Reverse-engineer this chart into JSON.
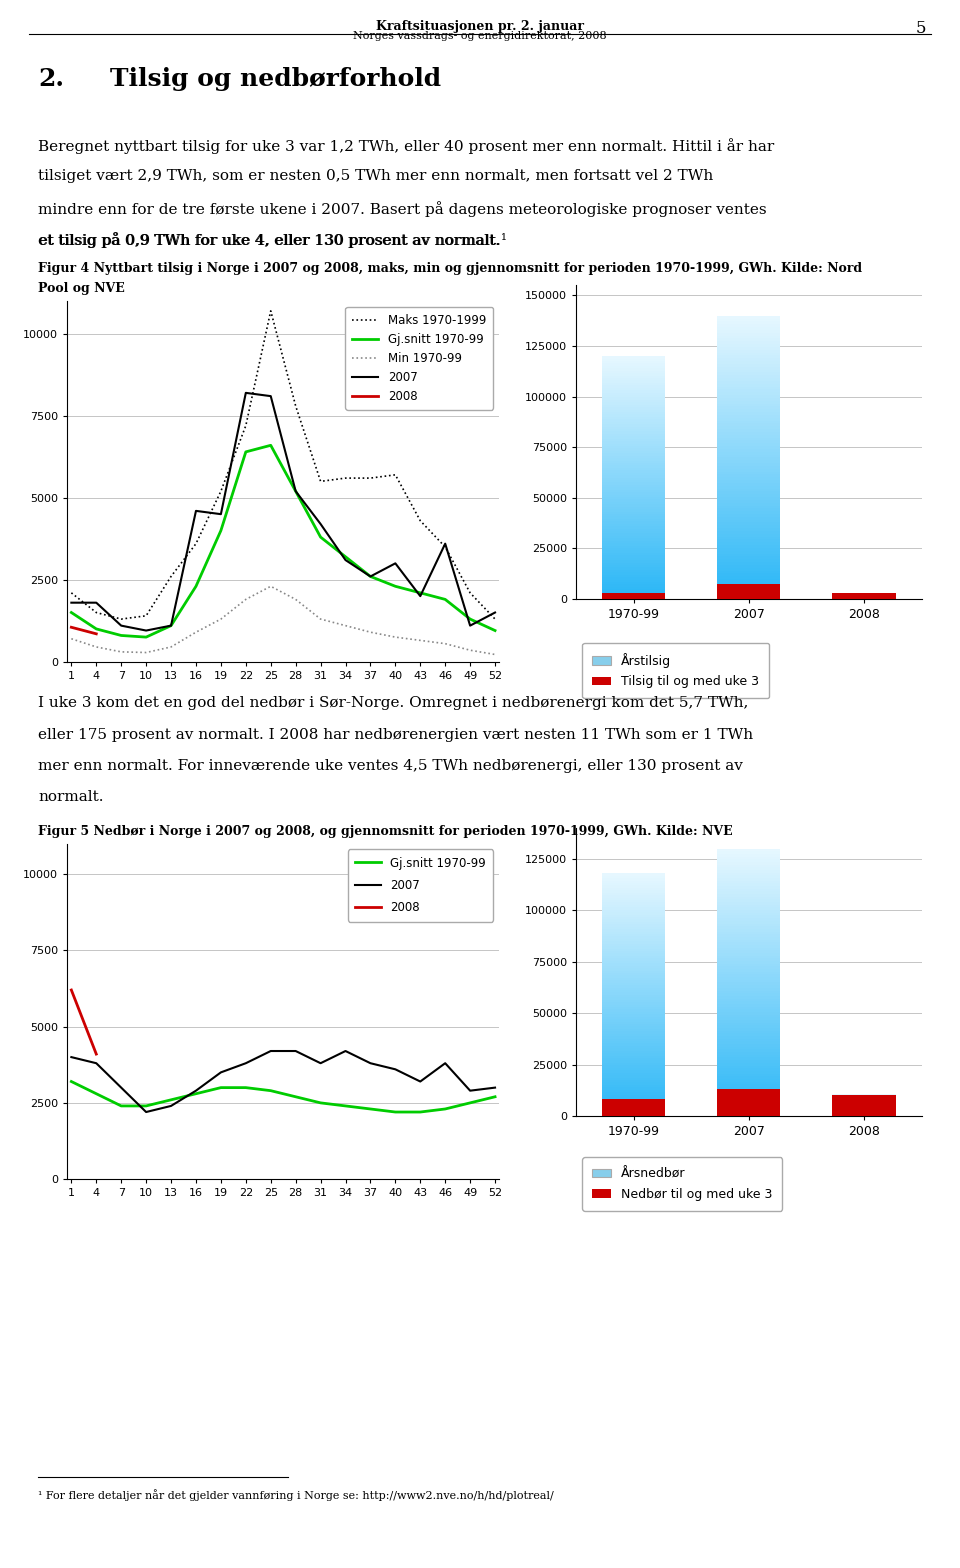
{
  "page_header_line1": "Kraftsituasjonen pr. 2. januar",
  "page_header_line2": "Norges vassdrags- og energidirektorat, 2008",
  "page_number": "5",
  "section_number": "2.",
  "section_title": "Tilsig og nedbørforhold",
  "body_text1_line1": "Beregnet nyttbart tilsig for uke 3 var 1,2 TWh, eller 40 prosent mer enn normalt. Hittil i år har",
  "body_text1_line2": "tilsiget vært 2,9 TWh, som er nesten 0,5 TWh mer enn normalt, men fortsatt vel 2 TWh",
  "body_text1_line3": "mindre enn for de tre første ukene i 2007. Basert på dagens meteorologiske prognoser ventes",
  "body_text1_line4": "et tilsig på 0,9 TWh for uke 4, eller 130 prosent av normalt.",
  "fig4_caption_line1": "Figur 4 Nyttbart tilsig i Norge i 2007 og 2008, maks, min og gjennomsnitt for perioden 1970-1999, GWh. Kilde: Nord",
  "fig4_caption_line2": "Pool og NVE",
  "body_text2_line1": "I uke 3 kom det en god del nedbør i Sør-Norge. Omregnet i nedbørenergi kom det 5,7 TWh,",
  "body_text2_line2": "eller 175 prosent av normalt. I 2008 har nedbørenergien vært nesten 11 TWh som er 1 TWh",
  "body_text2_line3": "mer enn normalt. For inneværende uke ventes 4,5 TWh nedbørenergi, eller 130 prosent av",
  "body_text2_line4": "normalt.",
  "fig5_caption": "Figur 5 Nedbør i Norge i 2007 og 2008, og gjennomsnitt for perioden 1970-1999, GWh. Kilde: NVE",
  "footnote_super": "¹",
  "footnote_text": " For flere detaljer når det gjelder vannføring i Norge se: http://www2.nve.no/h/hd/plotreal/",
  "weeks": [
    1,
    4,
    7,
    10,
    13,
    16,
    19,
    22,
    25,
    28,
    31,
    34,
    37,
    40,
    43,
    46,
    49,
    52
  ],
  "tilsig_maks": [
    2100,
    1500,
    1300,
    1400,
    2600,
    3600,
    5200,
    7200,
    10700,
    7800,
    5500,
    5600,
    5600,
    5700,
    4300,
    3500,
    2100,
    1300
  ],
  "tilsig_gjsnitt": [
    1500,
    1000,
    800,
    750,
    1100,
    2300,
    4000,
    6400,
    6600,
    5200,
    3800,
    3200,
    2600,
    2300,
    2100,
    1900,
    1300,
    950
  ],
  "tilsig_min": [
    700,
    450,
    300,
    280,
    450,
    900,
    1300,
    1900,
    2300,
    1900,
    1300,
    1100,
    900,
    750,
    650,
    550,
    350,
    220
  ],
  "tilsig_2007": [
    1800,
    1800,
    1100,
    950,
    1100,
    4600,
    4500,
    8200,
    8100,
    5200,
    4200,
    3100,
    2600,
    3000,
    2000,
    3600,
    1100,
    1500
  ],
  "tilsig_2008": [
    1050,
    850,
    null,
    null,
    null,
    null,
    null,
    null,
    null,
    null,
    null,
    null,
    null,
    null,
    null,
    null,
    null,
    null
  ],
  "tilsig_bar_categories": [
    "1970-99",
    "2007",
    "2008"
  ],
  "tilsig_bar_annual": [
    120000,
    140000,
    1900
  ],
  "tilsig_bar_week3": [
    3200,
    7500,
    3100
  ],
  "nedboer_gjsnitt": [
    3200,
    2800,
    2400,
    2400,
    2600,
    2800,
    3000,
    3000,
    2900,
    2700,
    2500,
    2400,
    2300,
    2200,
    2200,
    2300,
    2500,
    2700
  ],
  "nedboer_2007": [
    4000,
    3800,
    3000,
    2200,
    2400,
    2900,
    3500,
    3800,
    4200,
    4200,
    3800,
    4200,
    3800,
    3600,
    3200,
    3800,
    2900,
    3000
  ],
  "nedboer_2008": [
    6200,
    4100,
    null,
    null,
    null,
    null,
    null,
    null,
    null,
    null,
    null,
    null,
    null,
    null,
    null,
    null,
    null,
    null
  ],
  "nedboer_bar_categories": [
    "1970-99",
    "2007",
    "2008"
  ],
  "nedboer_bar_annual": [
    118000,
    130000,
    10800
  ],
  "nedboer_bar_week3": [
    8500,
    13500,
    10200
  ],
  "bar_annual_color": "#87ceeb",
  "bar_week3_color": "#cc0000",
  "line_maks_color": "#000000",
  "line_gjsnitt_color": "#00cc00",
  "line_min_color": "#888888",
  "line_2007_color": "#000000",
  "line_2008_color": "#cc0000"
}
